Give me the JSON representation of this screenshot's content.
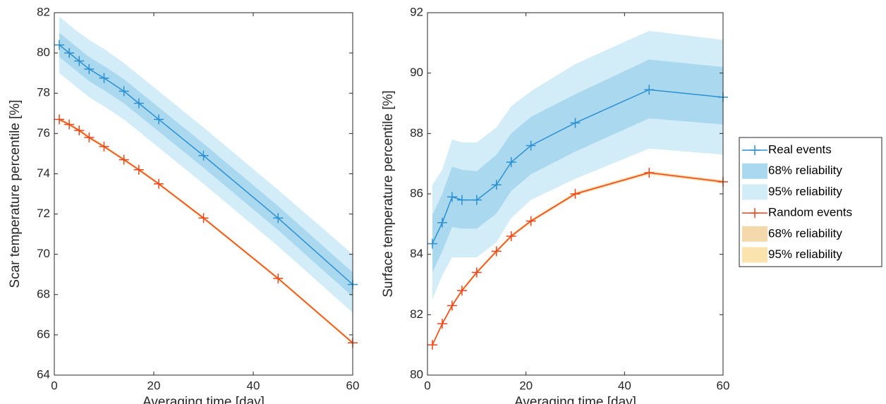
{
  "chart_data": [
    {
      "type": "line",
      "xlabel": "Averaging time [day]",
      "ylabel": "Scar temperature percentile [%]",
      "x": [
        1,
        3,
        5,
        7,
        10,
        14,
        17,
        21,
        30,
        45,
        60
      ],
      "xlim": [
        0,
        60
      ],
      "xticks": [
        0,
        20,
        40,
        60
      ],
      "ylim": [
        64,
        82
      ],
      "yticks": [
        64,
        66,
        68,
        70,
        72,
        74,
        76,
        78,
        80,
        82
      ],
      "series": [
        {
          "color": "#2b8fd2",
          "values": [
            80.4,
            80.0,
            79.6,
            79.2,
            78.75,
            78.1,
            77.5,
            76.7,
            74.9,
            71.8,
            68.5
          ],
          "bands": [
            {
              "color": "#d2ecf8",
              "lower": [
                79.0,
                78.6,
                78.2,
                77.8,
                77.35,
                76.7,
                76.1,
                75.3,
                73.5,
                70.4,
                67.1
              ],
              "upper": [
                81.8,
                81.4,
                81.0,
                80.65,
                80.2,
                79.5,
                78.9,
                78.1,
                76.3,
                73.2,
                70.0
              ]
            },
            {
              "color": "#aad9ef",
              "lower": [
                79.8,
                79.4,
                79.0,
                78.6,
                78.15,
                77.5,
                76.9,
                76.1,
                74.3,
                71.2,
                67.9
              ],
              "upper": [
                81.0,
                80.6,
                80.2,
                79.8,
                79.35,
                78.7,
                78.1,
                77.3,
                75.5,
                72.4,
                69.1
              ]
            }
          ]
        },
        {
          "color": "#f0441a",
          "values": [
            76.7,
            76.45,
            76.15,
            75.8,
            75.35,
            74.7,
            74.2,
            73.5,
            71.8,
            68.8,
            65.6
          ],
          "bands": [
            {
              "color": "#fbe3ad",
              "lower": [
                76.62,
                76.37,
                76.07,
                75.72,
                75.27,
                74.62,
                74.12,
                73.42,
                71.72,
                68.72,
                65.52
              ],
              "upper": [
                76.78,
                76.53,
                76.23,
                75.88,
                75.43,
                74.78,
                74.28,
                73.58,
                71.88,
                68.88,
                65.68
              ]
            },
            {
              "color": "#f5d9ad",
              "lower": [
                76.65,
                76.4,
                76.1,
                75.75,
                75.3,
                74.65,
                74.15,
                73.45,
                71.75,
                68.75,
                65.55
              ],
              "upper": [
                76.75,
                76.5,
                76.2,
                75.85,
                75.4,
                74.75,
                74.25,
                73.55,
                71.85,
                68.85,
                65.65
              ]
            }
          ]
        }
      ]
    },
    {
      "type": "line",
      "xlabel": "Averaging time [day]",
      "ylabel": "Surface temperature percentile [%]",
      "x": [
        1,
        3,
        5,
        7,
        10,
        14,
        17,
        21,
        30,
        45,
        60
      ],
      "xlim": [
        0,
        60
      ],
      "xticks": [
        0,
        20,
        40,
        60
      ],
      "ylim": [
        80,
        92
      ],
      "yticks": [
        80,
        82,
        84,
        86,
        88,
        90,
        92
      ],
      "legend": "outside-right",
      "series": [
        {
          "name": "Real events",
          "color": "#2b8fd2",
          "values": [
            84.35,
            85.05,
            85.9,
            85.8,
            85.8,
            86.3,
            87.05,
            87.6,
            88.35,
            89.45,
            89.2
          ],
          "bands": [
            {
              "name": "95% reliability",
              "color": "#d2ecf8",
              "lower": [
                82.5,
                83.3,
                83.9,
                83.9,
                83.9,
                84.4,
                85.2,
                85.8,
                86.5,
                87.5,
                87.3
              ],
              "upper": [
                86.3,
                86.8,
                87.8,
                87.7,
                87.7,
                88.2,
                88.9,
                89.4,
                90.3,
                91.4,
                91.1
              ]
            },
            {
              "name": "68% reliability",
              "color": "#aad9ef",
              "lower": [
                83.4,
                84.1,
                84.9,
                84.85,
                84.85,
                85.35,
                86.1,
                86.65,
                87.4,
                88.5,
                88.3
              ],
              "upper": [
                85.3,
                86.0,
                86.9,
                86.8,
                86.75,
                87.3,
                88.0,
                88.55,
                89.3,
                90.45,
                90.2
              ]
            }
          ]
        },
        {
          "name": "Random events",
          "color": "#f0441a",
          "values": [
            81.0,
            81.7,
            82.3,
            82.8,
            83.4,
            84.1,
            84.6,
            85.1,
            86.0,
            86.7,
            86.4
          ],
          "bands": [
            {
              "name": "95% reliability",
              "color": "#fbe3ad",
              "lower": [
                80.94,
                81.64,
                82.24,
                82.74,
                83.34,
                84.04,
                84.54,
                85.04,
                85.94,
                86.64,
                86.34
              ],
              "upper": [
                81.06,
                81.76,
                82.36,
                82.86,
                83.46,
                84.16,
                84.66,
                85.16,
                86.06,
                86.76,
                86.46
              ]
            },
            {
              "name": "68% reliability",
              "color": "#f5d9ad",
              "lower": [
                80.96,
                81.66,
                82.26,
                82.76,
                83.36,
                84.06,
                84.56,
                85.06,
                85.96,
                86.66,
                86.36
              ],
              "upper": [
                81.04,
                81.74,
                82.34,
                82.84,
                83.44,
                84.14,
                84.64,
                85.14,
                86.04,
                86.74,
                86.44
              ]
            }
          ]
        }
      ]
    }
  ]
}
